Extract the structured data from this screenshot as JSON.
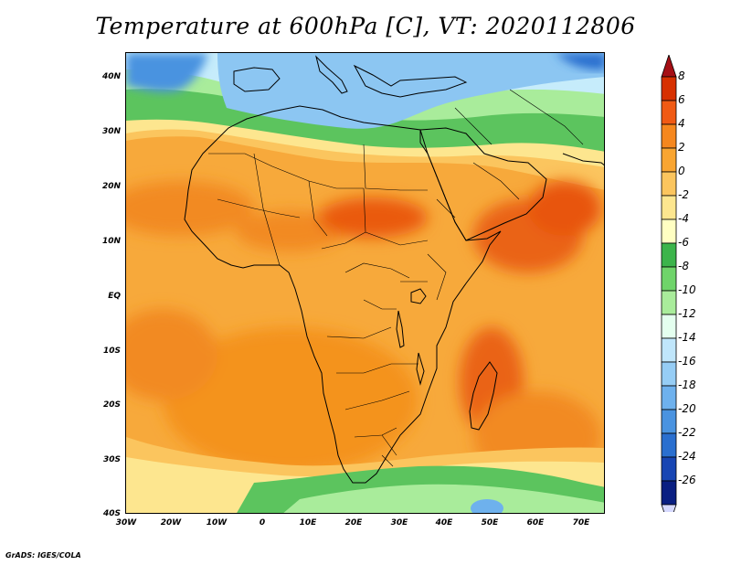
{
  "title": "Temperature at 600hPa [C], VT: 2020112806",
  "credit": "GrADS: IGES/COLA",
  "lat_labels": [
    "40N",
    "30N",
    "20N",
    "10N",
    "EQ",
    "10S",
    "20S",
    "30S",
    "40S"
  ],
  "lon_labels": [
    "30W",
    "20W",
    "10W",
    "0",
    "10E",
    "20E",
    "30E",
    "40E",
    "50E",
    "60E",
    "70E"
  ],
  "colorbar": {
    "labels": [
      "8",
      "6",
      "4",
      "2",
      "0",
      "-2",
      "-4",
      "-6",
      "-8",
      "-10",
      "-12",
      "-14",
      "-16",
      "-18",
      "-20",
      "-22",
      "-24",
      "-26"
    ],
    "colors": [
      "#a50f15",
      "#d73000",
      "#f05a14",
      "#f5871e",
      "#f9a531",
      "#fbc55e",
      "#fde68f",
      "#ffffc2",
      "#3cb44b",
      "#6fd46a",
      "#a9ec9b",
      "#e4ffef",
      "#c0e6fb",
      "#96cdf5",
      "#6eb1ed",
      "#4a93e0",
      "#2a6fcf",
      "#1745b3",
      "#0a1f82",
      "#d6d9ff"
    ]
  },
  "legend_colors": {
    "ocean_base": "#f7a93b",
    "land_base": "#f8a73a",
    "warm_core": "#f47a1f",
    "hot_core": "#ea5a10",
    "mild": "#fbc55e",
    "cool_yellow": "#fde68f",
    "green_dark": "#3cb44b",
    "green_light": "#7dd67a",
    "mint": "#c8f5d8",
    "sky": "#b8e2f8",
    "blue": "#7ab9ee",
    "deep_blue": "#2a6fcf",
    "coast": "#000000"
  }
}
